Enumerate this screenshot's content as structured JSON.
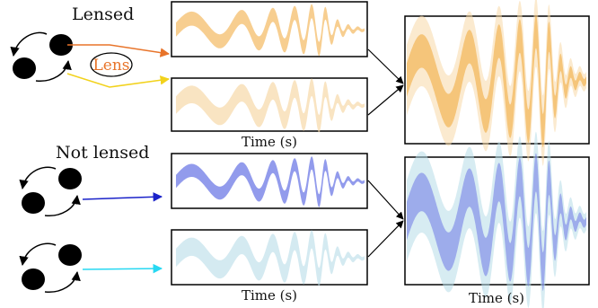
{
  "labels": {
    "lensed": "Lensed",
    "not_lensed": "Not lensed",
    "lens": "Lens",
    "time_axis": "Time (s)"
  },
  "colors": {
    "lensed_orange": "#f0a534",
    "lensed_light": "#f7d9a8",
    "lens_text": "#e8742a",
    "yellow_ray": "#f2d21c",
    "orange_ray": "#e8742a",
    "blue_ray": "#1a22c9",
    "cyan_ray": "#27d8f2",
    "nl_blue": "#6d79e6",
    "nl_light": "#b7dce8",
    "binary_black": "#000000"
  },
  "panels": [
    {
      "id": "lensed-image-1",
      "color": "#f0a534",
      "opacity": 0.55
    },
    {
      "id": "lensed-image-2",
      "color": "#f7d9a8",
      "opacity": 0.7
    },
    {
      "id": "unlensed-event-1",
      "color": "#6d79e6",
      "opacity": 0.75
    },
    {
      "id": "unlensed-event-2",
      "color": "#b7dce8",
      "opacity": 0.6
    },
    {
      "id": "lensed-combined",
      "color": "#f0a534",
      "opacity": 0.55
    },
    {
      "id": "unlensed-combined",
      "color": "#6d79e6",
      "opacity": 0.55
    }
  ]
}
